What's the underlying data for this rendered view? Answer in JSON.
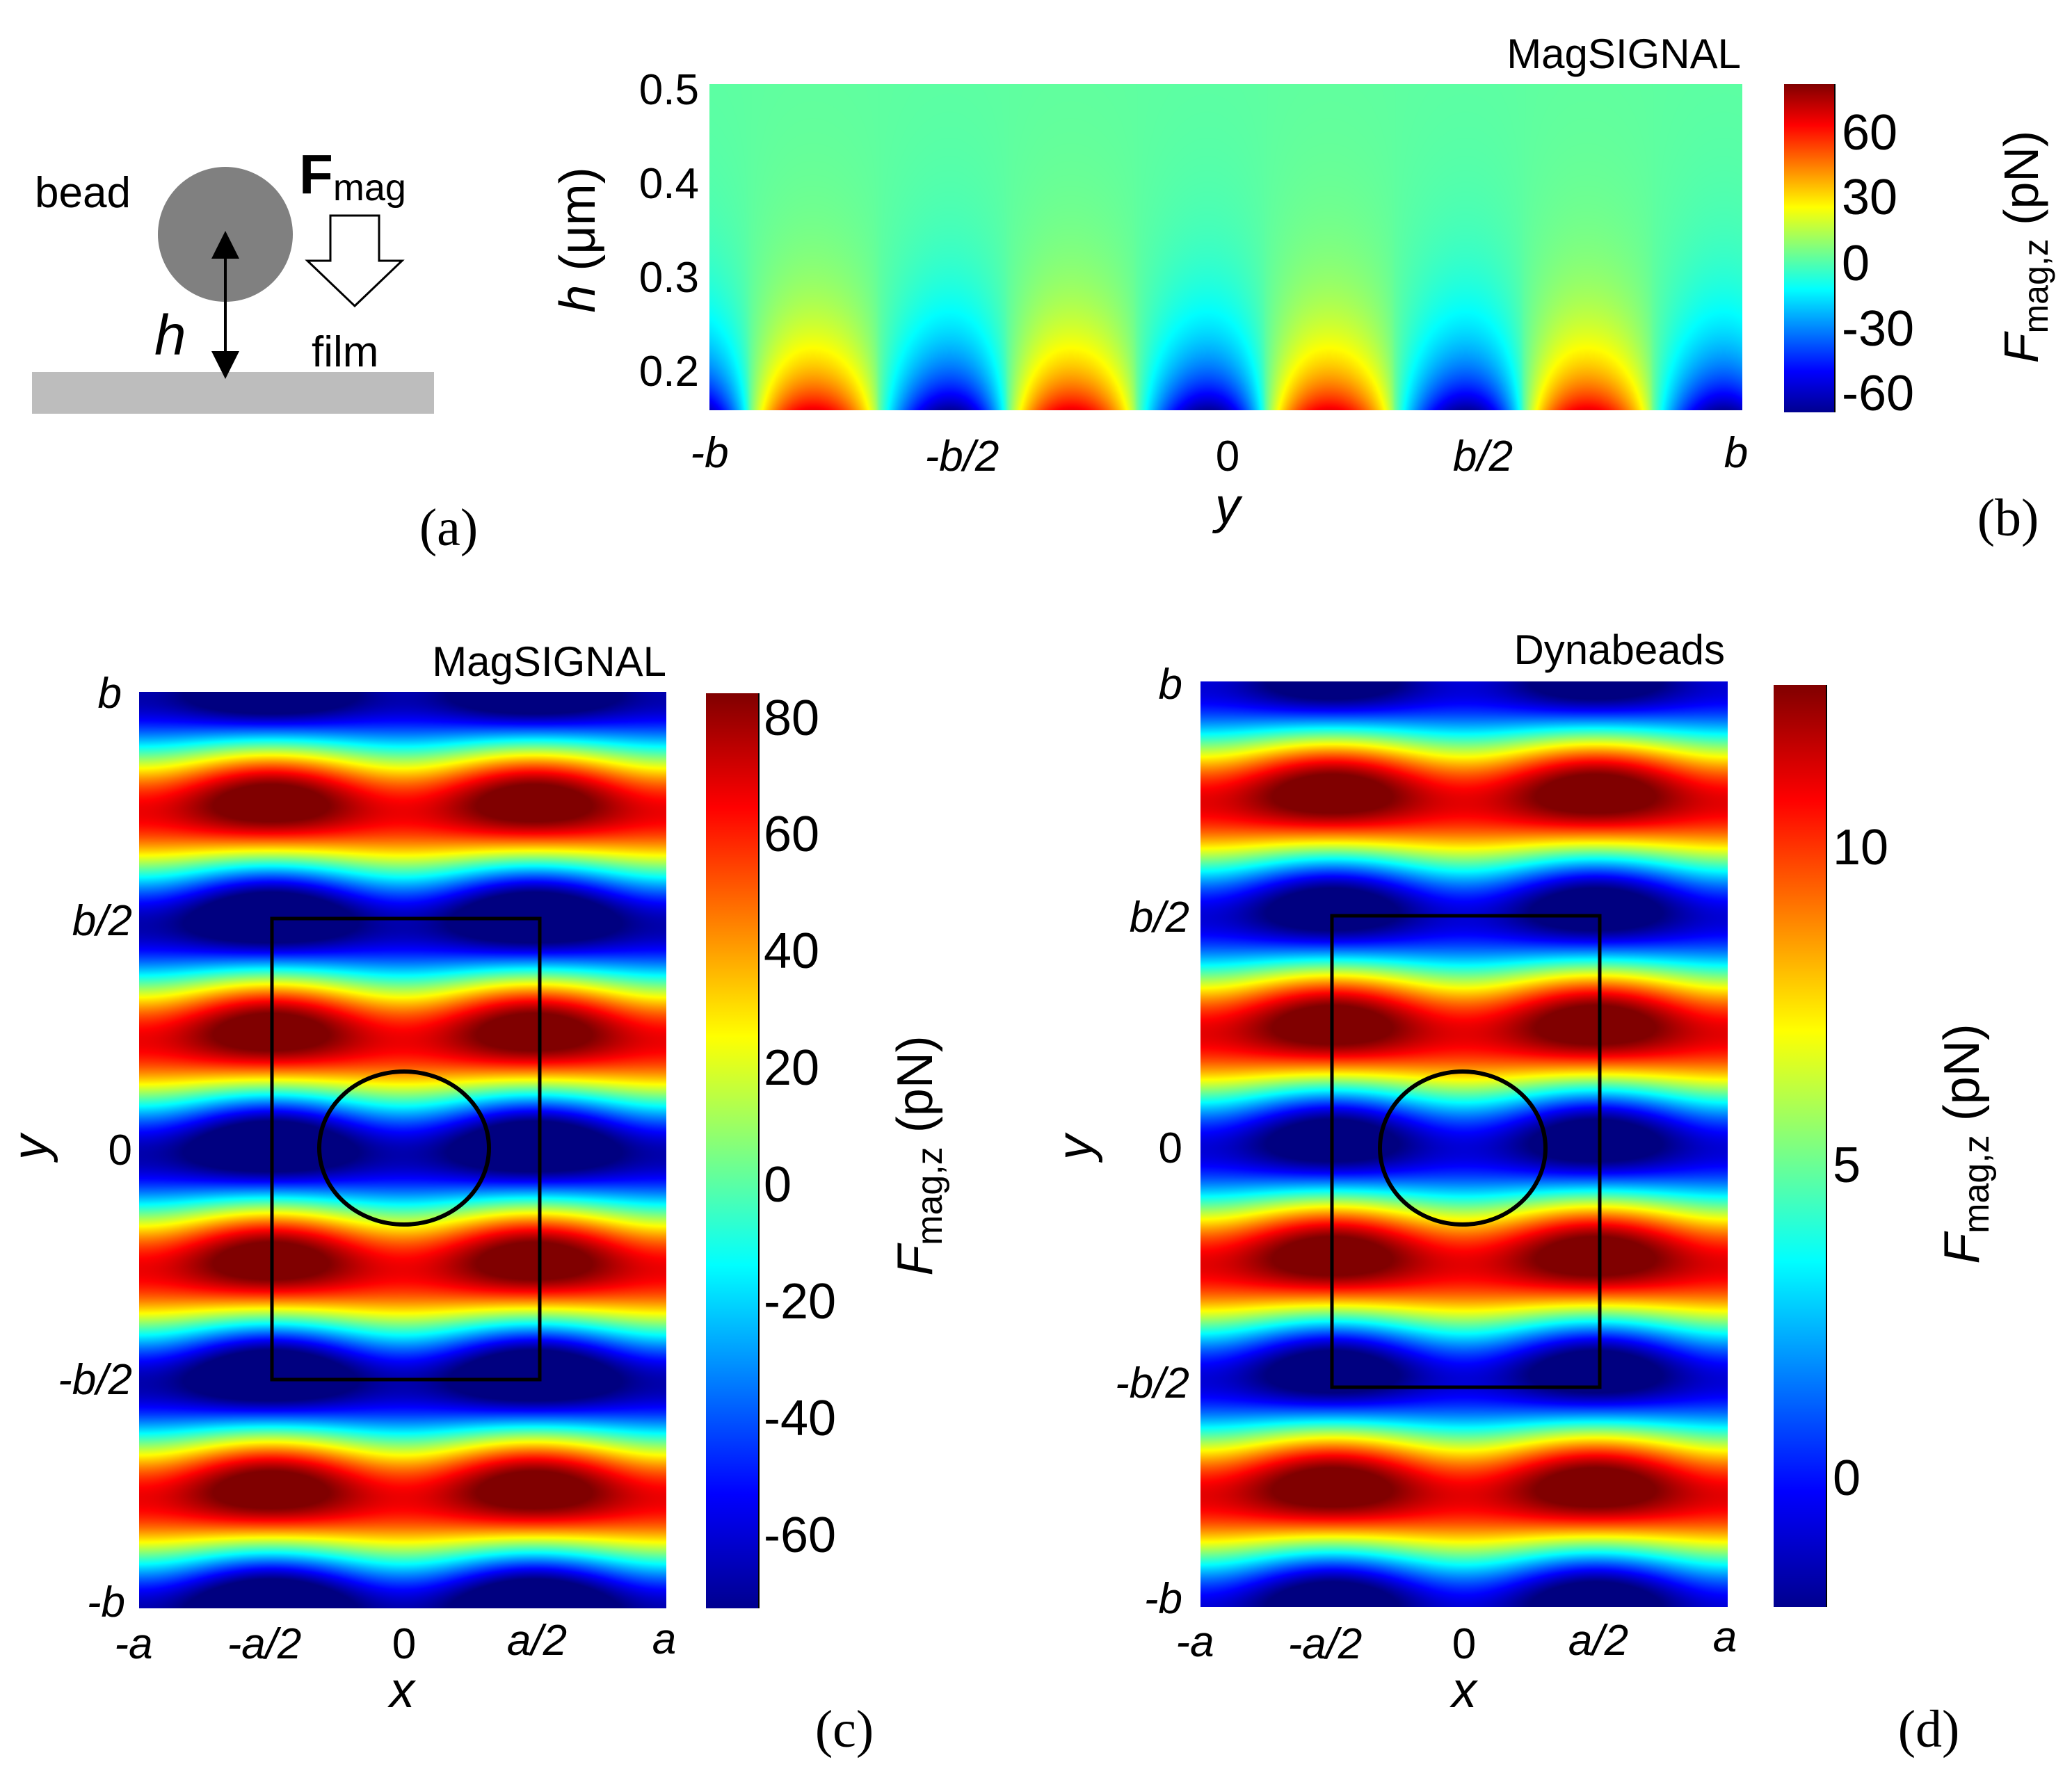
{
  "figure": {
    "panel_a": {
      "bead_label": "bead",
      "force_symbol": "F",
      "force_subscript": "mag",
      "height_label": "h",
      "film_label": "film",
      "panel_label": "(a)"
    },
    "panel_b": {
      "panel_label": "(b)"
    },
    "panel_c": {
      "panel_label": "(c)"
    },
    "panel_d": {
      "panel_label": "(d)"
    }
  },
  "colormap": "jet",
  "chart_data": [
    {
      "type": "heatmap",
      "id": "b",
      "title": "MagSIGNAL",
      "xlabel": "y",
      "ylabel": "h (μm)",
      "ylabel_italic": "h",
      "ylabel_units": "(μm)",
      "x_ticks": [
        "-b",
        "-b/2",
        "0",
        "b/2",
        "b"
      ],
      "x_tick_values": [
        -1,
        -0.5,
        0,
        0.5,
        1
      ],
      "xlim": [
        -1,
        1
      ],
      "y_ticks": [
        "0.2",
        "0.3",
        "0.4",
        "0.5"
      ],
      "y_tick_values": [
        0.2,
        0.3,
        0.4,
        0.5
      ],
      "ylim": [
        0.16,
        0.5
      ],
      "field": "Fmag,z(y,h): 8 lobes across y, max about 80 pN at h≈0.18 um near y=±0.2b, ±0.7b; min about -70 pN at y=0, ±0.45b, ±b; decays to 0 by h≈0.5 um",
      "colorbar": {
        "label_symbol": "F",
        "label_subscript": "mag,z",
        "label_units": "(pN)",
        "range": [
          -72,
          82
        ],
        "ticks": [
          "60",
          "30",
          "0",
          "-30",
          "-60"
        ],
        "tick_values": [
          60,
          30,
          0,
          -30,
          -60
        ]
      }
    },
    {
      "type": "heatmap",
      "id": "c",
      "title": "MagSIGNAL",
      "xlabel": "x",
      "ylabel": "y",
      "x_ticks": [
        "-a",
        "-a/2",
        "0",
        "a/2",
        "a"
      ],
      "x_tick_values": [
        -1,
        -0.5,
        0,
        0.5,
        1
      ],
      "xlim": [
        -1,
        1
      ],
      "y_ticks": [
        "b",
        "b/2",
        "0",
        "-b/2",
        "-b"
      ],
      "y_tick_values": [
        1,
        0.5,
        0,
        -0.5,
        -1
      ],
      "ylim": [
        -1,
        1
      ],
      "field": "Fmag,z(x,y) at fixed h: wavy horizontal stripes, minima at y=0 and y=±b/2 (deepest near x=±a), maxima between",
      "overlays": {
        "rectangle": {
          "x": [
            -0.5,
            0.5
          ],
          "y": [
            -0.5,
            0.5
          ]
        },
        "circle": {
          "cx": 0,
          "cy": 0,
          "r_x": 0.32,
          "r_y": 0.17
        }
      },
      "colorbar": {
        "label_symbol": "F",
        "label_subscript": "mag,z",
        "label_units": "(pN)",
        "range": [
          -75,
          85
        ],
        "ticks": [
          "80",
          "60",
          "40",
          "20",
          "0",
          "-20",
          "-40",
          "-60"
        ],
        "tick_values": [
          80,
          60,
          40,
          20,
          0,
          -20,
          -40,
          -60
        ]
      }
    },
    {
      "type": "heatmap",
      "id": "d",
      "title": "Dynabeads",
      "xlabel": "x",
      "ylabel": "y",
      "x_ticks": [
        "-a",
        "-a/2",
        "0",
        "a/2",
        "a"
      ],
      "x_tick_values": [
        -1,
        -0.5,
        0,
        0.5,
        1
      ],
      "xlim": [
        -1,
        1
      ],
      "y_ticks": [
        "b",
        "b/2",
        "0",
        "-b/2",
        "-b"
      ],
      "y_tick_values": [
        1,
        0.5,
        0,
        -0.5,
        -1
      ],
      "ylim": [
        -1,
        1
      ],
      "field": "Fmag,z(x,y) at fixed h: same stripe pattern as (c), smaller magnitude",
      "overlays": {
        "rectangle": {
          "x": [
            -0.5,
            0.5
          ],
          "y": [
            -0.5,
            0.5
          ]
        },
        "circle": {
          "cx": 0,
          "cy": 0,
          "r_x": 0.31,
          "r_y": 0.17
        }
      },
      "colorbar": {
        "label_symbol": "F",
        "label_subscript": "mag,z",
        "label_units": "(pN)",
        "range": [
          -2.2,
          12.8
        ],
        "ticks": [
          "10",
          "5",
          "0"
        ],
        "tick_values": [
          10,
          5,
          0
        ]
      }
    }
  ]
}
